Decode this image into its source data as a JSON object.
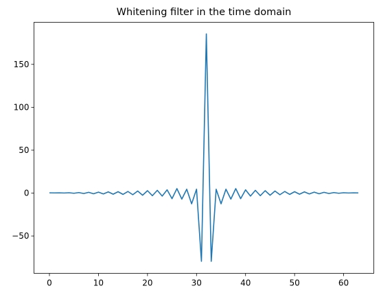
{
  "chart_data": {
    "type": "line",
    "title": "Whitening filter in the time domain",
    "xlabel": "",
    "ylabel": "",
    "xlim": [
      -3.15,
      66.15
    ],
    "ylim": [
      -93.5,
      199
    ],
    "xticks": [
      0,
      10,
      20,
      30,
      40,
      50,
      60
    ],
    "yticks": [
      -50,
      0,
      50,
      100,
      150
    ],
    "grid": false,
    "line_color": "#1f77b4",
    "series": [
      {
        "x": [
          0,
          1,
          2,
          3,
          4,
          5,
          6,
          7,
          8,
          9,
          10,
          11,
          12,
          13,
          14,
          15,
          16,
          17,
          18,
          19,
          20,
          21,
          22,
          23,
          24,
          25,
          26,
          27,
          28,
          29,
          30,
          31,
          32,
          33,
          34,
          35,
          36,
          37,
          38,
          39,
          40,
          41,
          42,
          43,
          44,
          45,
          46,
          47,
          48,
          49,
          50,
          51,
          52,
          53,
          54,
          55,
          56,
          57,
          58,
          59,
          60,
          61,
          62,
          63
        ],
        "y": [
          0.3,
          0.2,
          0.3,
          0.1,
          0.4,
          -0.2,
          0.6,
          -0.5,
          0.9,
          -0.8,
          1.1,
          -1.0,
          1.4,
          -1.3,
          1.6,
          -1.5,
          1.9,
          -1.9,
          2.4,
          -2.5,
          2.8,
          -3.0,
          3.2,
          -3.5,
          3.8,
          -6.5,
          5.2,
          -7.0,
          4.5,
          -12.5,
          4.5,
          -79.5,
          185.5,
          -79.5,
          4.5,
          -12.5,
          4.5,
          -7.0,
          5.2,
          -6.5,
          3.8,
          -3.5,
          3.2,
          -3.0,
          2.8,
          -2.5,
          2.4,
          -1.9,
          1.9,
          -1.5,
          1.6,
          -1.3,
          1.4,
          -1.0,
          1.1,
          -0.8,
          0.9,
          -0.5,
          0.6,
          -0.2,
          0.4,
          0.1,
          0.3,
          0.2
        ]
      }
    ]
  }
}
